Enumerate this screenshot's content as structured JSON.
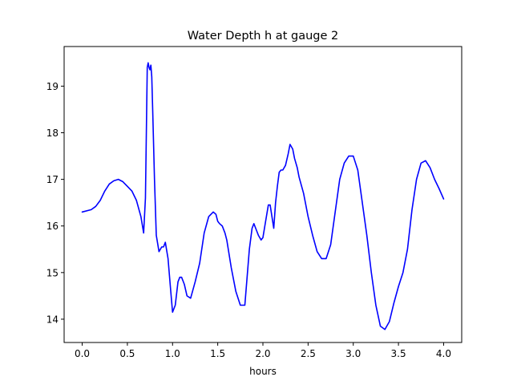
{
  "chart_data": {
    "type": "line",
    "title": "Water Depth h at gauge 2",
    "xlabel": "hours",
    "ylabel": "",
    "xlim": [
      -0.2,
      4.2
    ],
    "ylim": [
      13.5,
      19.85
    ],
    "xticks": [
      0.0,
      0.5,
      1.0,
      1.5,
      2.0,
      2.5,
      3.0,
      3.5,
      4.0
    ],
    "xtick_labels": [
      "0.0",
      "0.5",
      "1.0",
      "1.5",
      "2.0",
      "2.5",
      "3.0",
      "3.5",
      "4.0"
    ],
    "yticks": [
      14,
      15,
      16,
      17,
      18,
      19
    ],
    "ytick_labels": [
      "14",
      "15",
      "16",
      "17",
      "18",
      "19"
    ],
    "grid": false,
    "legend": "none",
    "colors": {
      "line": "#0000ff",
      "axes": "#000000",
      "background": "#ffffff"
    },
    "series": [
      {
        "x": [
          0.0,
          0.1,
          0.15,
          0.2,
          0.25,
          0.3,
          0.35,
          0.4,
          0.45,
          0.5,
          0.55,
          0.6,
          0.65,
          0.68,
          0.7,
          0.72,
          0.73,
          0.74,
          0.75,
          0.76,
          0.77,
          0.78,
          0.8,
          0.82,
          0.85,
          0.88,
          0.9,
          0.92,
          0.95,
          0.98,
          1.0,
          1.03,
          1.06,
          1.08,
          1.1,
          1.13,
          1.16,
          1.2,
          1.25,
          1.3,
          1.35,
          1.4,
          1.45,
          1.48,
          1.5,
          1.52,
          1.55,
          1.58,
          1.6,
          1.65,
          1.7,
          1.75,
          1.8,
          1.85,
          1.88,
          1.9,
          1.92,
          1.95,
          1.98,
          2.0,
          2.03,
          2.06,
          2.08,
          2.1,
          2.12,
          2.14,
          2.16,
          2.18,
          2.2,
          2.22,
          2.25,
          2.28,
          2.3,
          2.33,
          2.35,
          2.38,
          2.4,
          2.45,
          2.5,
          2.55,
          2.6,
          2.65,
          2.7,
          2.75,
          2.8,
          2.85,
          2.9,
          2.95,
          3.0,
          3.05,
          3.1,
          3.15,
          3.2,
          3.25,
          3.3,
          3.35,
          3.4,
          3.45,
          3.5,
          3.55,
          3.6,
          3.65,
          3.7,
          3.75,
          3.8,
          3.85,
          3.9,
          3.95,
          4.0
        ],
        "y": [
          16.3,
          16.35,
          16.42,
          16.55,
          16.75,
          16.9,
          16.97,
          17.0,
          16.95,
          16.85,
          16.75,
          16.55,
          16.2,
          15.85,
          16.6,
          19.4,
          19.5,
          19.4,
          19.35,
          19.45,
          19.2,
          18.5,
          17.0,
          15.8,
          15.45,
          15.55,
          15.55,
          15.65,
          15.3,
          14.6,
          14.15,
          14.3,
          14.8,
          14.9,
          14.9,
          14.75,
          14.5,
          14.45,
          14.8,
          15.2,
          15.85,
          16.2,
          16.3,
          16.25,
          16.1,
          16.05,
          16.0,
          15.85,
          15.7,
          15.1,
          14.6,
          14.3,
          14.3,
          15.5,
          15.95,
          16.05,
          15.95,
          15.8,
          15.7,
          15.75,
          16.1,
          16.45,
          16.45,
          16.2,
          15.95,
          16.5,
          16.85,
          17.15,
          17.2,
          17.2,
          17.3,
          17.55,
          17.75,
          17.65,
          17.45,
          17.25,
          17.05,
          16.7,
          16.2,
          15.8,
          15.45,
          15.3,
          15.3,
          15.6,
          16.3,
          17.0,
          17.35,
          17.5,
          17.5,
          17.2,
          16.5,
          15.8,
          15.0,
          14.3,
          13.85,
          13.78,
          13.95,
          14.35,
          14.7,
          15.0,
          15.5,
          16.35,
          17.0,
          17.35,
          17.4,
          17.25,
          17.0,
          16.8,
          16.58
        ]
      }
    ]
  }
}
